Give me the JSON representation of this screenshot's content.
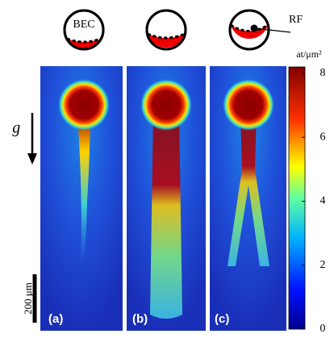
{
  "schematic": {
    "bec_label": "BEC",
    "rf_label": "RF"
  },
  "panels": [
    {
      "label": "(a)"
    },
    {
      "label": "(b)"
    },
    {
      "label": "(c)"
    }
  ],
  "gravity_label": "g⃗",
  "scale_bar_label": "200 μm",
  "colorbar": {
    "label": "at/μm²",
    "lim": [
      0,
      8.2
    ],
    "ticks": [
      0,
      2,
      4,
      6,
      8
    ]
  }
}
